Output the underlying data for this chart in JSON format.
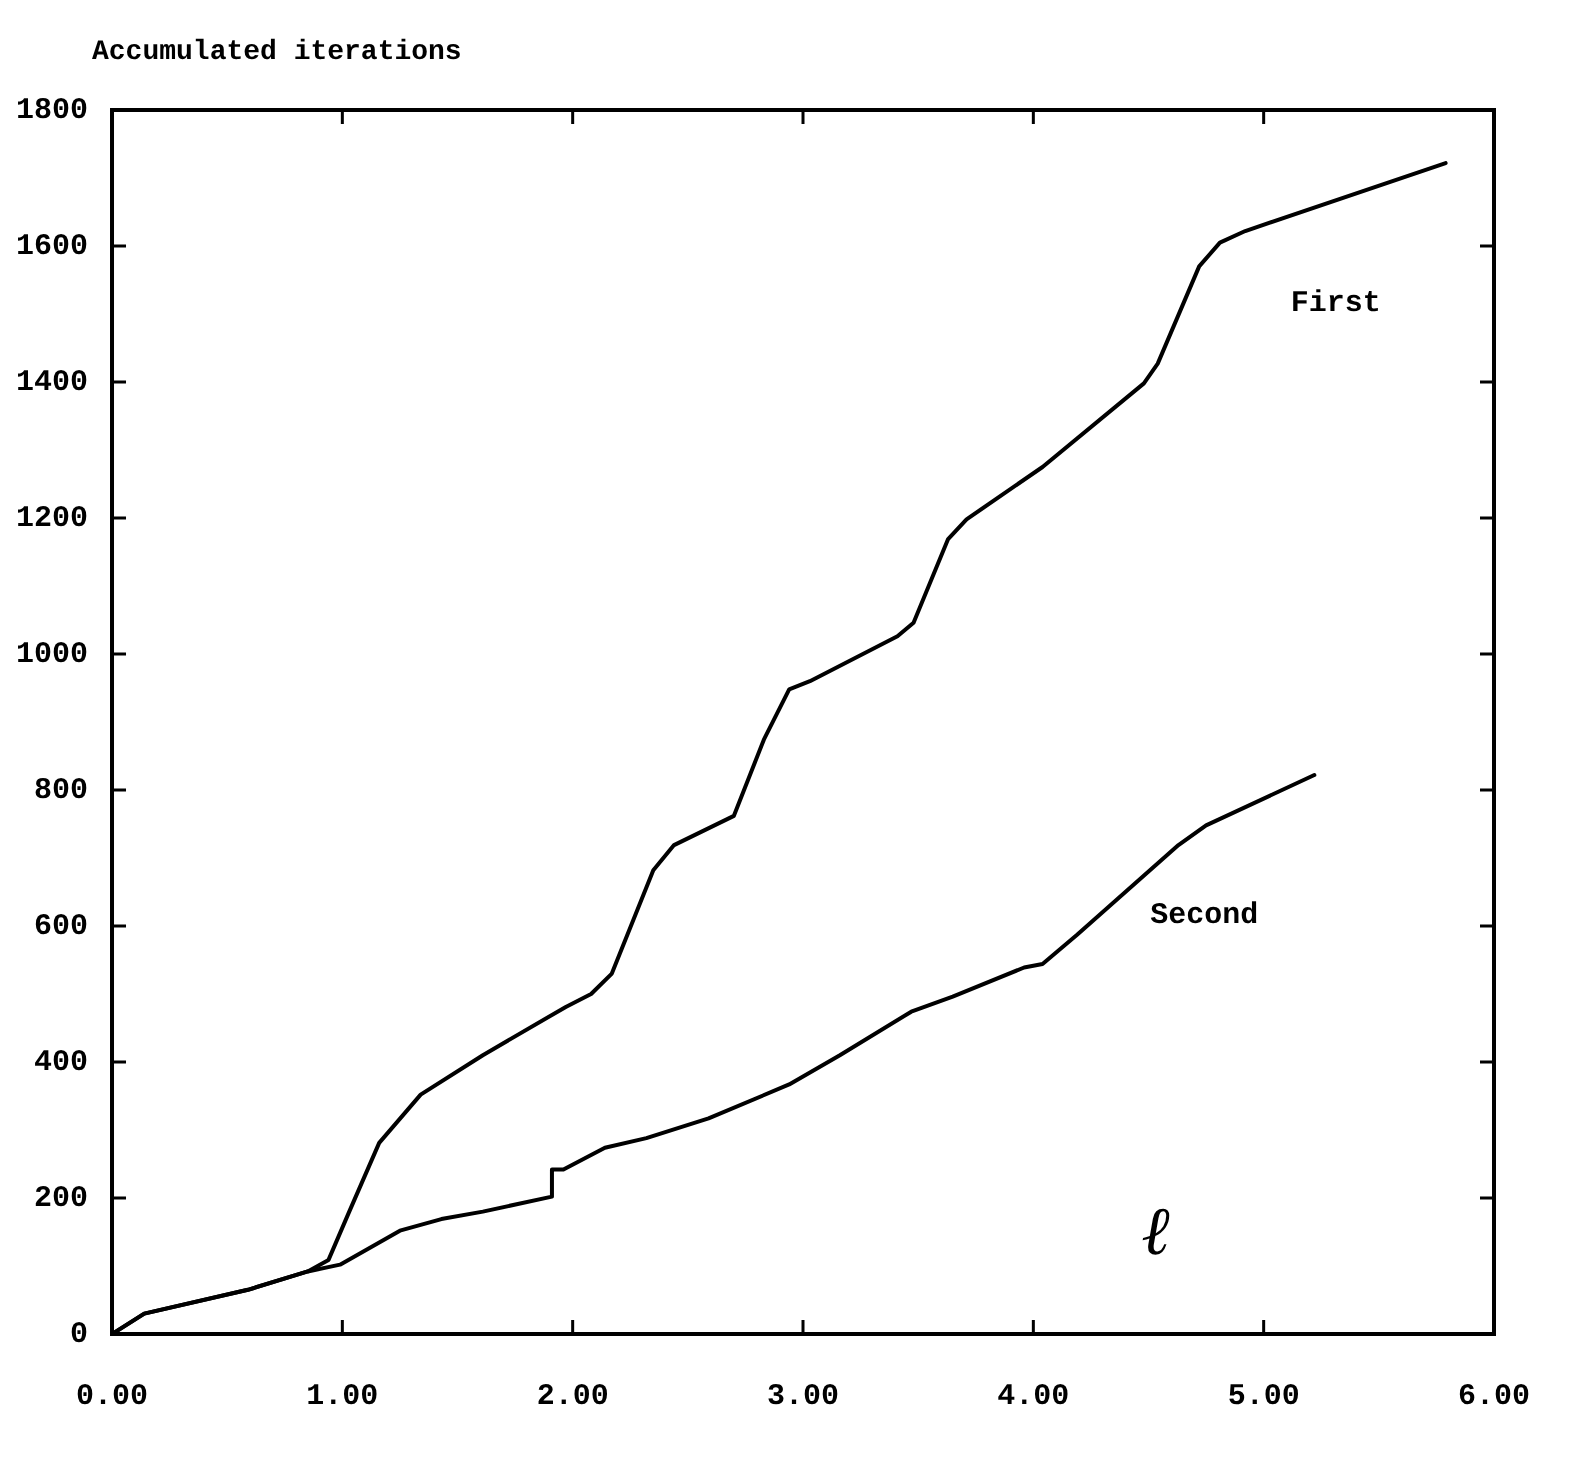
{
  "chart_data": {
    "type": "line",
    "ylabel": "Accumulated iterations",
    "xlabel": "ℓ",
    "xlim": [
      0,
      6
    ],
    "xticks": [
      {
        "value": 0,
        "label": "0.00"
      },
      {
        "value": 1,
        "label": "1.00"
      },
      {
        "value": 2,
        "label": "2.00"
      },
      {
        "value": 3,
        "label": "3.00"
      },
      {
        "value": 4,
        "label": "4.00"
      },
      {
        "value": 5,
        "label": "5.00"
      },
      {
        "value": 6,
        "label": "6.00"
      }
    ],
    "ylim": [
      0,
      1800
    ],
    "yticks": [
      0,
      200,
      400,
      600,
      800,
      1000,
      1200,
      1400,
      1600,
      1800
    ],
    "grid": false,
    "legend": false,
    "marker": "none",
    "line_style": "solid",
    "series": [
      {
        "name": "First",
        "color": "#000000",
        "x": [
          0,
          0.14,
          0.59,
          0.85,
          0.94,
          1.03,
          1.16,
          1.34,
          1.61,
          1.97,
          2.08,
          2.17,
          2.35,
          2.44,
          2.7,
          2.83,
          2.94,
          3.03,
          3.41,
          3.48,
          3.63,
          3.71,
          4.04,
          4.48,
          4.54,
          4.72,
          4.81,
          4.92,
          5.79
        ],
        "values": [
          0,
          30,
          65,
          92,
          109,
          180,
          281,
          352,
          410,
          481,
          500,
          530,
          682,
          719,
          762,
          874,
          948,
          960,
          1026,
          1046,
          1169,
          1198,
          1275,
          1398,
          1427,
          1570,
          1605,
          1622,
          1722
        ]
      },
      {
        "name": "Second",
        "color": "#000000",
        "x": [
          0,
          0.14,
          0.59,
          0.85,
          0.99,
          1.25,
          1.43,
          1.61,
          1.91,
          1.91,
          1.96,
          2.14,
          2.32,
          2.59,
          2.94,
          3.16,
          3.47,
          3.65,
          3.96,
          4.04,
          4.19,
          4.63,
          4.75,
          5.22
        ],
        "values": [
          0,
          30,
          65,
          92,
          102,
          152,
          169,
          180,
          202,
          242,
          242,
          274,
          288,
          317,
          367,
          410,
          474,
          496,
          539,
          544,
          587,
          719,
          748,
          822
        ]
      }
    ]
  }
}
